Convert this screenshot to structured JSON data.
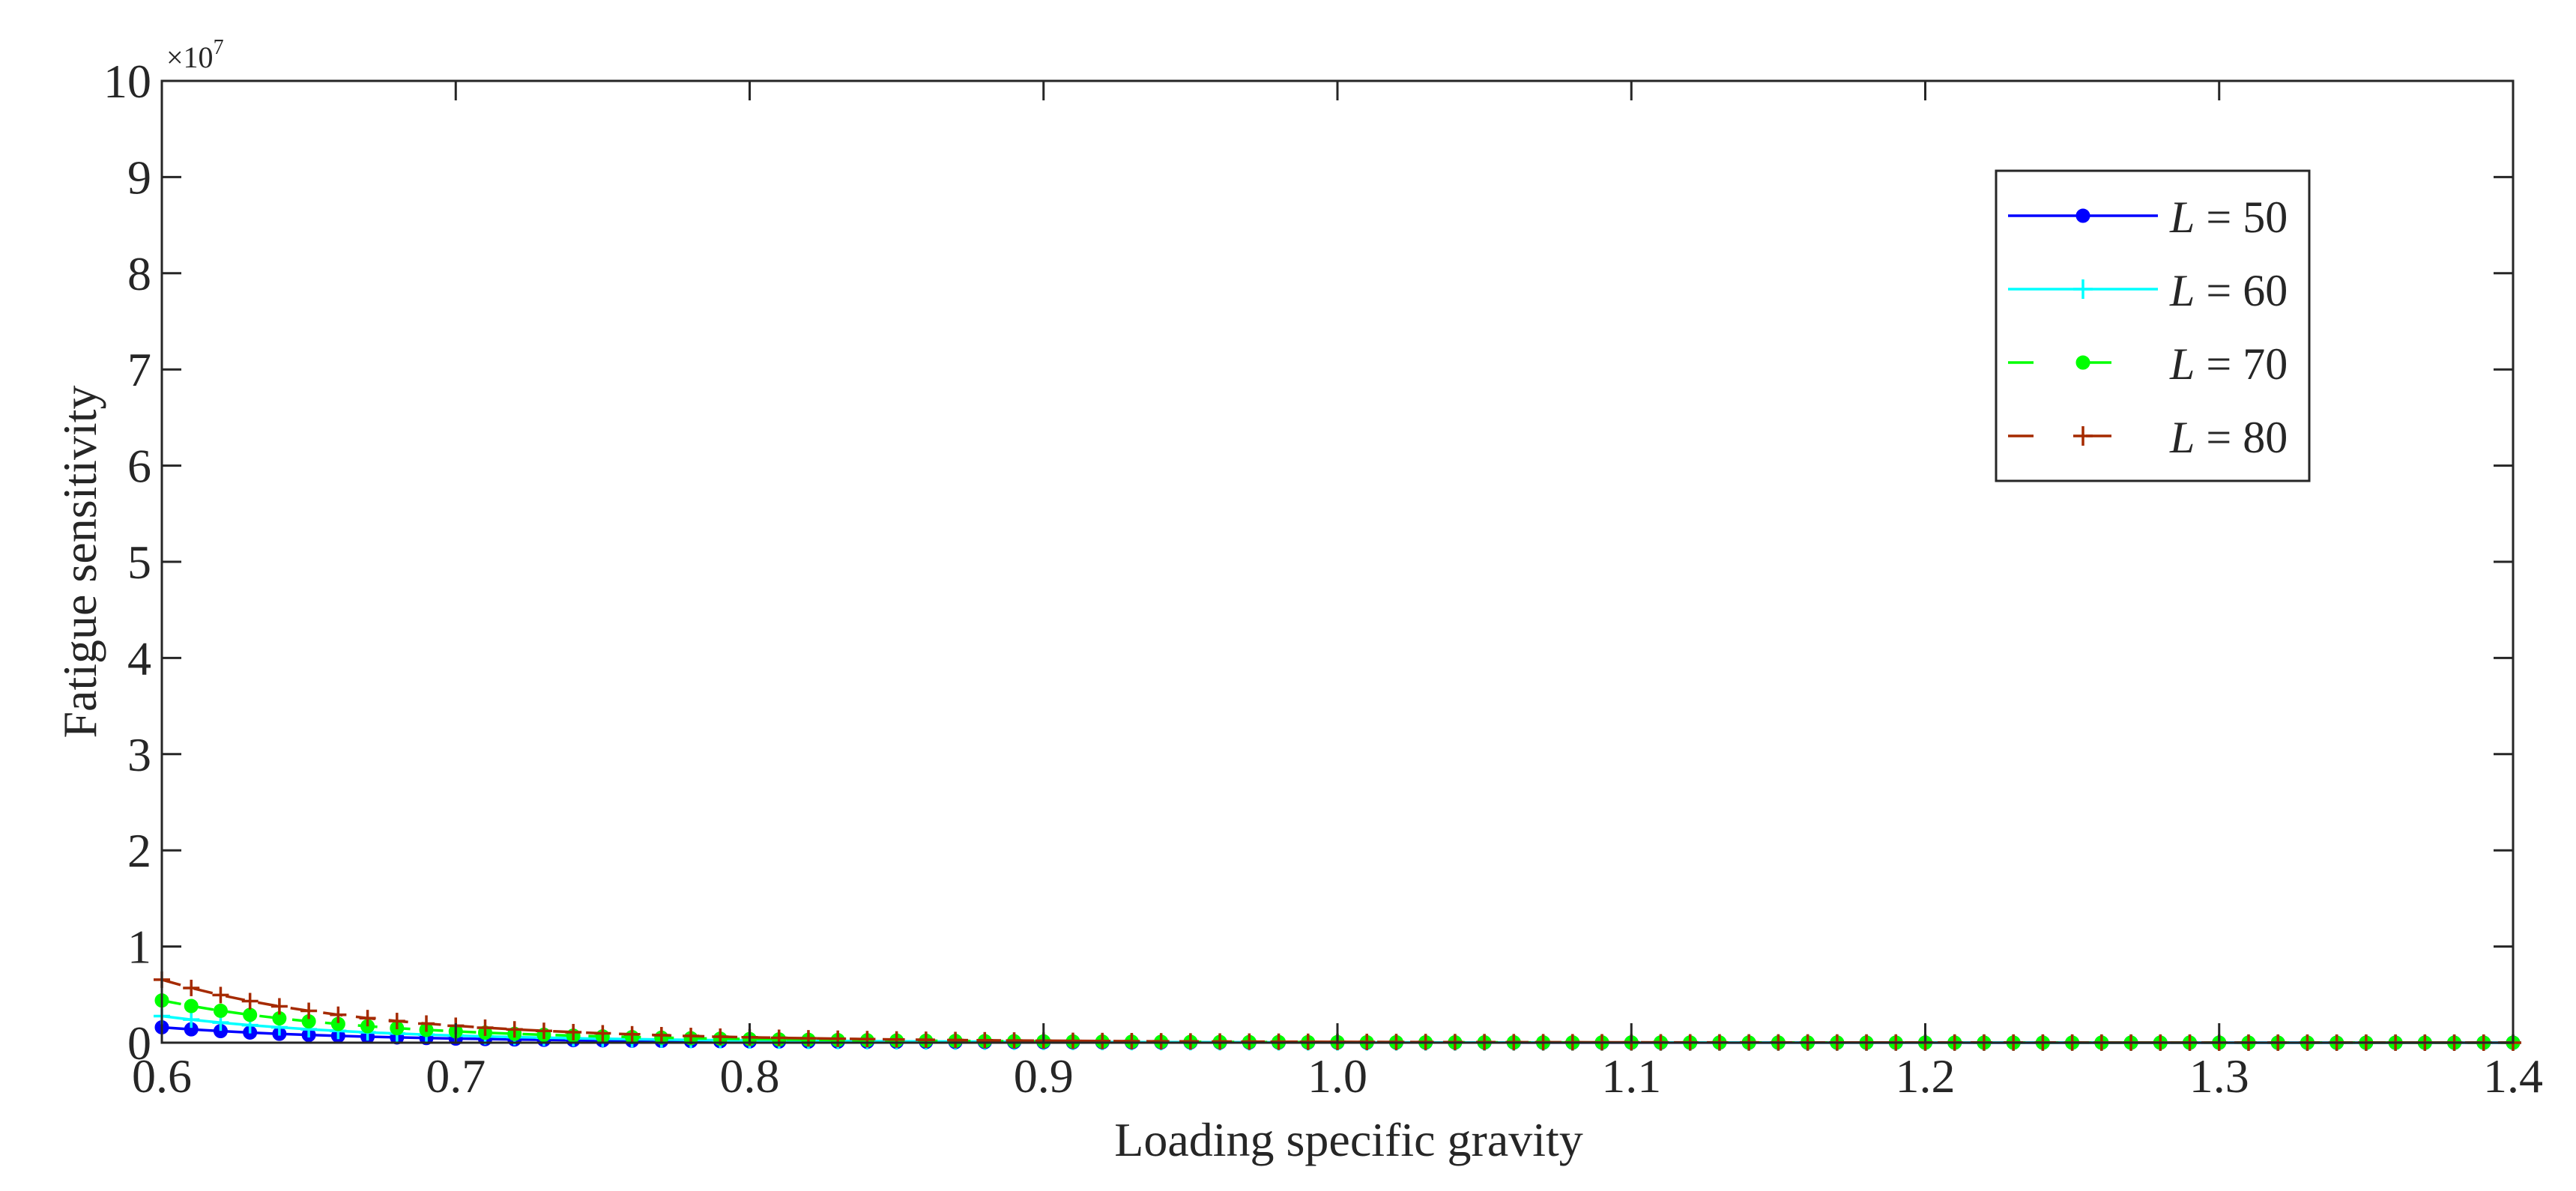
{
  "chart_data": {
    "type": "line",
    "title": "",
    "xlabel": "Loading specific gravity",
    "ylabel": "Fatigue sensitivity",
    "y_exponent_label": "×10",
    "y_exponent_power": "7",
    "xlim": [
      0.6,
      1.4
    ],
    "ylim": [
      0,
      10
    ],
    "x_ticks": [
      "0.6",
      "0.7",
      "0.8",
      "0.9",
      "1.0",
      "1.1",
      "1.2",
      "1.3",
      "1.4"
    ],
    "y_ticks": [
      "0",
      "1",
      "2",
      "3",
      "4",
      "5",
      "6",
      "7",
      "8",
      "9",
      "10"
    ],
    "grid": false,
    "legend_position": "top-right",
    "x_start": 0.6,
    "x_step": 0.01,
    "x_count": 81,
    "y_cap": 10,
    "series": [
      {
        "name": "L = 50",
        "legend_var": "L",
        "legend_value": "= 50",
        "color": "#0000ff",
        "dash": "solid",
        "marker": "dot",
        "a": 8.533,
        "b": 0.0002046,
        "cap": 10
      },
      {
        "name": "L = 60",
        "legend_var": "L",
        "legend_value": "= 60",
        "color": "#00ffff",
        "dash": "solid",
        "marker": "plus",
        "a": 8.533,
        "b": 0.0003536,
        "cap": 10
      },
      {
        "name": "L = 70",
        "legend_var": "L",
        "legend_value": "= 70",
        "color": "#00ff00",
        "dash": "dashed",
        "marker": "dot",
        "a": 8.533,
        "b": 0.0005616,
        "cap": 10
      },
      {
        "name": "L = 80",
        "legend_var": "L",
        "legend_value": "= 80",
        "color": "#a52a00",
        "dash": "dashed",
        "marker": "plus",
        "a": 8.533,
        "b": 0.0008382,
        "cap": 10
      }
    ]
  }
}
